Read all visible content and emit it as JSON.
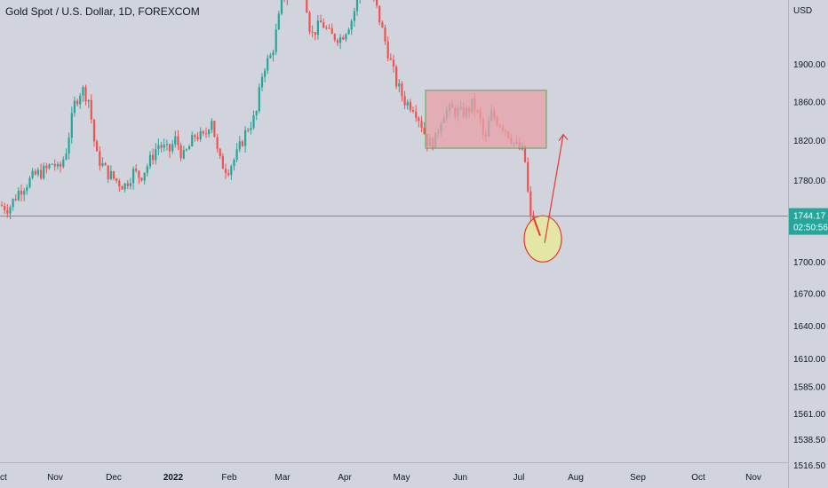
{
  "header": {
    "title": "Gold Spot / U.S. Dollar, 1D, FOREXCOM"
  },
  "price_axis": {
    "unit": "USD",
    "ticks": [
      "1900.00",
      "1860.00",
      "1820.00",
      "1780.00",
      "1700.00",
      "1670.00",
      "1640.00",
      "1610.00",
      "1585.00",
      "1561.00",
      "1538.50",
      "1516.50"
    ],
    "last_price": "1744.17",
    "countdown": "02:50:56"
  },
  "time_axis": {
    "ticks": [
      "Oct",
      "Nov",
      "Dec",
      "2022",
      "Feb",
      "Mar",
      "Apr",
      "May",
      "Jun",
      "Jul",
      "Aug",
      "Sep",
      "Oct",
      "Nov"
    ]
  },
  "colors": {
    "up": "#26a69a",
    "down": "#ef5350",
    "background": "#d1d4dc",
    "price_line": "#26a69a",
    "box_fill": "#e8a0a8",
    "box_border": "#4caf50",
    "circle_fill": "#e6e8a0",
    "arrow": "#e53935"
  },
  "chart_data": {
    "type": "candlestick",
    "title": "Gold Spot / U.S. Dollar, 1D, FOREXCOM",
    "y_unit": "USD",
    "y_scale": "log",
    "ylim": [
      1516.5,
      1940
    ],
    "x_ticks": [
      "Oct",
      "Nov",
      "Dec",
      "2022",
      "Feb",
      "Mar",
      "Apr",
      "May",
      "Jun",
      "Jul",
      "Aug",
      "Sep",
      "Oct",
      "Nov"
    ],
    "last_price": 1744.17,
    "annotations": [
      {
        "type": "rectangle",
        "from": "May 11",
        "to": "Jul 13",
        "low": 1812,
        "high": 1872
      },
      {
        "type": "ellipse",
        "at": "Jul 14",
        "price": 1722
      },
      {
        "type": "arrow",
        "from_date": "Jul 14",
        "from_price": 1718,
        "to_date": "Jul 21",
        "to_price": 1825
      }
    ]
  }
}
